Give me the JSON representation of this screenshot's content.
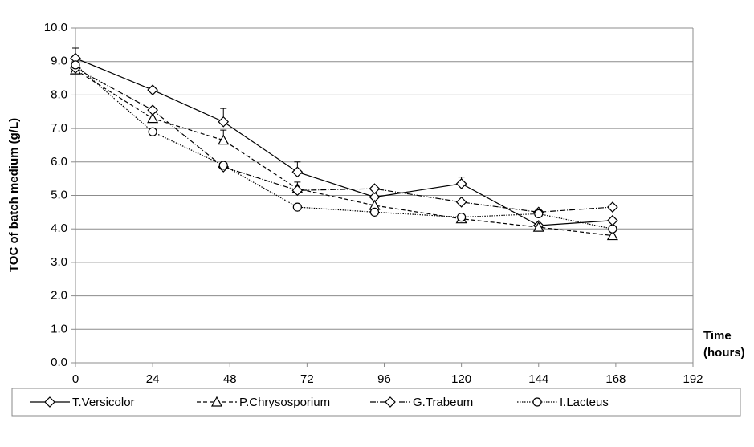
{
  "chart_data": {
    "type": "line",
    "ylabel": "TOC of batch medium (g/L)",
    "xlabel": [
      "Time",
      "(hours)"
    ],
    "xlim": [
      0,
      192
    ],
    "xticks": [
      0,
      24,
      48,
      72,
      96,
      120,
      144,
      168,
      192
    ],
    "ylim": [
      0,
      10
    ],
    "yticks": [
      {
        "value": 0,
        "label": "0.0"
      },
      {
        "value": 1,
        "label": "1.0"
      },
      {
        "value": 2,
        "label": "2.0"
      },
      {
        "value": 3,
        "label": "3.0"
      },
      {
        "value": 4,
        "label": "4.0"
      },
      {
        "value": 5,
        "label": "5.0"
      },
      {
        "value": 6,
        "label": "6.0"
      },
      {
        "value": 7,
        "label": "7.0"
      },
      {
        "value": 8,
        "label": "8.0"
      },
      {
        "value": 9,
        "label": "9.0"
      },
      {
        "value": 10,
        "label": "10.0"
      }
    ],
    "grid": true,
    "legend": "bottom",
    "series": [
      {
        "name": "T.Versicolor",
        "color": "#000000",
        "marker": "diamond",
        "dash": "solid",
        "x": [
          0,
          24,
          46,
          69,
          93,
          120,
          144,
          167
        ],
        "values": [
          9.1,
          8.15,
          7.2,
          5.7,
          4.95,
          5.35,
          4.1,
          4.25
        ],
        "errors": [
          0.3,
          null,
          0.4,
          0.3,
          null,
          0.2,
          null,
          null
        ]
      },
      {
        "name": "P.Chrysosporium",
        "color": "#000000",
        "marker": "triangle",
        "dash": "dashed",
        "x": [
          0,
          24,
          46,
          69,
          93,
          120,
          144,
          167
        ],
        "values": [
          8.75,
          7.3,
          6.65,
          5.2,
          4.7,
          4.3,
          4.05,
          3.8
        ],
        "errors": [
          null,
          null,
          0.3,
          0.2,
          null,
          null,
          null,
          null
        ]
      },
      {
        "name": "G.Trabeum",
        "color": "#000000",
        "marker": "diamond",
        "dash": "dashdot",
        "x": [
          0,
          24,
          46,
          69,
          93,
          120,
          144,
          167
        ],
        "values": [
          8.8,
          7.55,
          5.85,
          5.15,
          5.2,
          4.8,
          4.5,
          4.65
        ]
      },
      {
        "name": "I.Lacteus",
        "color": "#000000",
        "marker": "circle",
        "dash": "dotted",
        "x": [
          0,
          24,
          46,
          69,
          93,
          120,
          144,
          167
        ],
        "values": [
          8.9,
          6.9,
          5.9,
          4.65,
          4.5,
          4.35,
          4.45,
          4.0
        ]
      }
    ]
  }
}
